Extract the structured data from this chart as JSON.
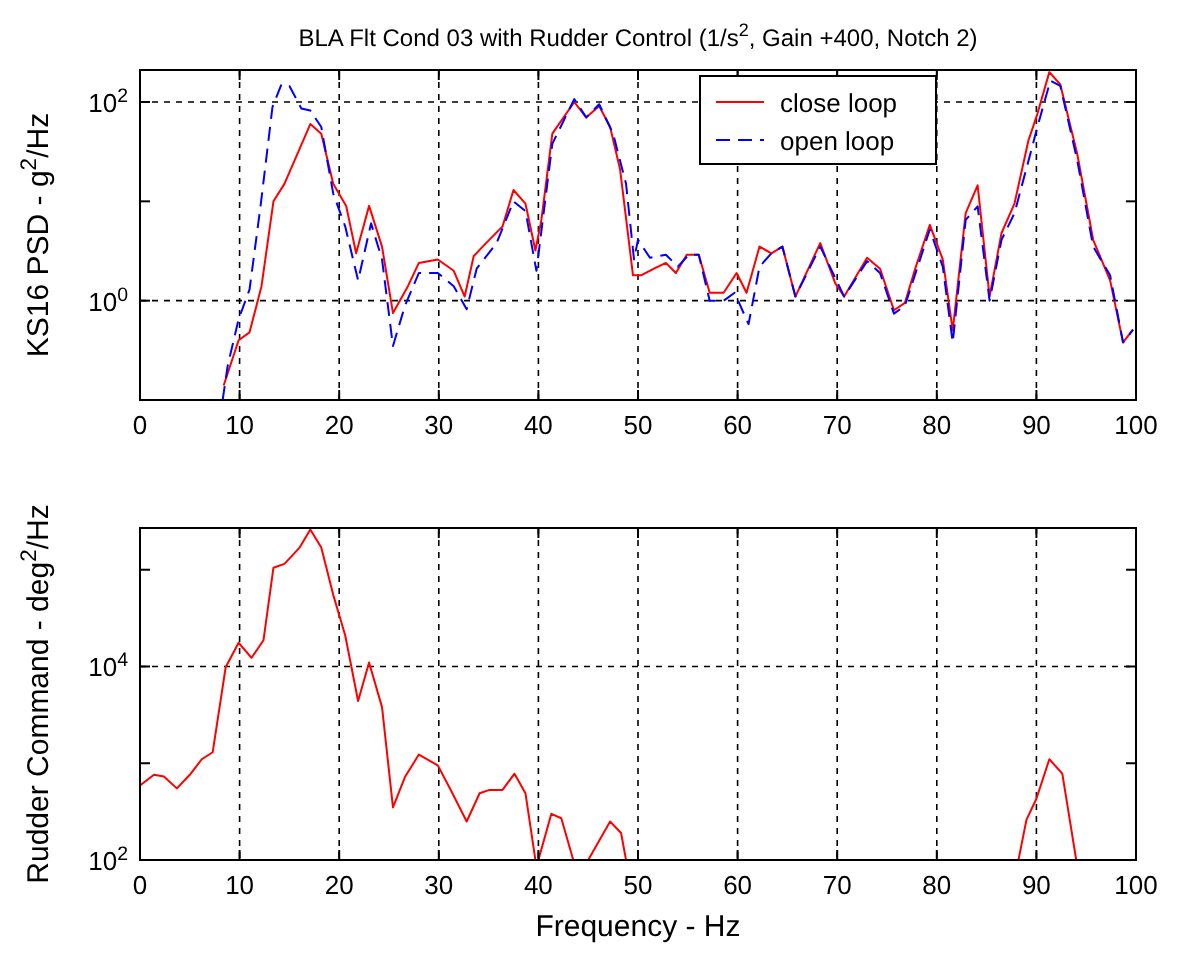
{
  "chart_data": [
    {
      "type": "line",
      "title": "BLA Flt Cond 03 with Rudder Control (1/s$^{2}$, Gain +400, Notch 2)",
      "ylabel": "KS16  PSD - g$^{2}$/Hz",
      "log": "y",
      "grid": true,
      "legend": "top right",
      "xlim": [
        0,
        100
      ],
      "xticks": [
        0,
        10,
        20,
        30,
        40,
        50,
        60,
        70,
        80,
        90,
        100
      ],
      "ylim": [
        0.1,
        210
      ],
      "yticks": [
        {
          "value": 1,
          "label": "10$^{0}$"
        },
        {
          "value": 10,
          "label": null
        },
        {
          "value": 100,
          "label": "10$^{2}$"
        }
      ],
      "series": [
        {
          "name": "close loop",
          "color": "#ff0000",
          "line_style": "solid",
          "x": [
            8.4,
            9.9,
            11.0,
            12.2,
            13.4,
            14.5,
            17.1,
            18.2,
            19.4,
            20.7,
            21.7,
            23.0,
            24.3,
            25.4,
            26.9,
            28.0,
            29.9,
            31.5,
            32.6,
            33.5,
            34.4,
            36.4,
            37.5,
            38.7,
            39.7,
            40.3,
            41.4,
            43.6,
            44.8,
            46.1,
            47.2,
            48.2,
            49.5,
            50.3,
            51.6,
            52.8,
            53.8,
            54.9,
            56.1,
            57.2,
            58.6,
            59.9,
            60.9,
            62.2,
            63.4,
            64.5,
            65.8,
            68.3,
            69.8,
            70.7,
            73.0,
            74.3,
            75.7,
            76.8,
            77.9,
            79.3,
            80.6,
            81.6,
            82.9,
            84.1,
            85.3,
            86.5,
            87.8,
            89.2,
            90.1,
            91.3,
            92.4,
            94.1,
            95.7,
            97.4,
            98.7,
            99.7
          ],
          "values": [
            0.14,
            0.4,
            0.48,
            1.4,
            10,
            15,
            60,
            48,
            15,
            9,
            3,
            9,
            3.5,
            0.75,
            1.4,
            2.4,
            2.6,
            2,
            1.1,
            2.8,
            3.5,
            5.6,
            13,
            9.5,
            3.2,
            6.5,
            48,
            100,
            70,
            91,
            56,
            21,
            1.8,
            1.8,
            2.1,
            2.4,
            1.9,
            2.9,
            2.9,
            1.2,
            1.2,
            1.9,
            1.2,
            3.5,
            3,
            3.5,
            1.1,
            3.8,
            1.5,
            1.1,
            2.7,
            2.1,
            0.8,
            0.95,
            2.2,
            5.8,
            2.6,
            0.5,
            7.6,
            14.5,
            1.1,
            4.8,
            9.5,
            41,
            76,
            200,
            150,
            30,
            4.1,
            1.6,
            0.38,
            0.51
          ]
        },
        {
          "name": "open loop",
          "color": "#0000ff",
          "line_style": "dashed",
          "x": [
            8.3,
            8.8,
            9.9,
            11.0,
            12.1,
            13.3,
            14.2,
            15.0,
            16.2,
            17.1,
            18.2,
            19.4,
            20.6,
            21.9,
            23.2,
            24.3,
            25.4,
            26.6,
            28.0,
            29.9,
            31.5,
            32.8,
            33.8,
            35.8,
            37.5,
            38.7,
            39.8,
            41.4,
            43.6,
            44.8,
            46.1,
            47.5,
            48.8,
            49.6,
            50.0,
            51.2,
            52.8,
            54.0,
            55.1,
            56.1,
            57.2,
            58.6,
            59.7,
            61.1,
            62.2,
            63.4,
            64.5,
            65.8,
            68.3,
            70.7,
            73.0,
            74.3,
            75.7,
            76.8,
            79.3,
            80.6,
            81.6,
            82.9,
            84.1,
            85.3,
            86.5,
            87.8,
            89.5,
            90.1,
            91.4,
            92.4,
            94.1,
            95.7,
            97.4,
            98.7,
            99.7
          ],
          "values": [
            0.1,
            0.22,
            0.65,
            1.3,
            8.9,
            89,
            150,
            145,
            86,
            82,
            56,
            12,
            5.6,
            1.6,
            6,
            2.6,
            0.35,
            0.89,
            1.9,
            1.9,
            1.4,
            0.82,
            2.1,
            3.8,
            10,
            8,
            2,
            38,
            107,
            70,
            95,
            48,
            15,
            2.6,
            4.1,
            2.7,
            2.9,
            2.2,
            2.9,
            2.9,
            1.0,
            1.0,
            1.2,
            0.58,
            2.2,
            3,
            3.5,
            1.1,
            3.5,
            1.1,
            2.5,
            1.9,
            0.74,
            0.89,
            5.2,
            2.2,
            0.38,
            6.5,
            8.9,
            1.0,
            4.1,
            7.6,
            33,
            56,
            164,
            145,
            26,
            3.5,
            1.8,
            0.38,
            0.51
          ]
        }
      ]
    },
    {
      "type": "line",
      "ylabel": "Rudder Command - deg$^{2}$/Hz",
      "xlabel": "Frequency - Hz",
      "log": "y",
      "grid": true,
      "xlim": [
        0,
        100
      ],
      "xticks": [
        0,
        10,
        20,
        30,
        40,
        50,
        60,
        70,
        80,
        90,
        100
      ],
      "ylim": [
        100,
        270000
      ],
      "yticks": [
        {
          "value": 100,
          "label": "10$^{2}$"
        },
        {
          "value": 1000,
          "label": null
        },
        {
          "value": 10000,
          "label": "10$^{4}$"
        },
        {
          "value": 100000,
          "label": null
        }
      ],
      "series": [
        {
          "color": "#ff0000",
          "line_style": "solid",
          "x": [
            0,
            1.4,
            2.4,
            3.7,
            5.0,
            6.2,
            7.3,
            8.6,
            9.9,
            11.2,
            12.4,
            13.4,
            14.5,
            16.0,
            17.1,
            18.2,
            19.4,
            20.6,
            21.9,
            23.0,
            24.3,
            25.4,
            26.6,
            28.0,
            29.9,
            31.2,
            32.8,
            34.1,
            35.1,
            36.4,
            37.6,
            38.7,
            39.7,
            40.0,
            41.3,
            42.3,
            43.5,
            45.0,
            47.2,
            48.3,
            48.8,
            60,
            88.2,
            89.0,
            90.0,
            91.3,
            92.6,
            94.0
          ],
          "values": [
            590,
            760,
            730,
            550,
            760,
            1100,
            1300,
            9800,
            17600,
            12300,
            18700,
            105000,
            115000,
            168000,
            260000,
            170000,
            55000,
            21000,
            4400,
            11000,
            3800,
            350,
            720,
            1230,
            950,
            530,
            250,
            490,
            530,
            530,
            780,
            490,
            100,
            100,
            300,
            270,
            100,
            100,
            250,
            190,
            100,
            null,
            100,
            260,
            430,
            1100,
            780,
            100
          ]
        }
      ]
    }
  ]
}
